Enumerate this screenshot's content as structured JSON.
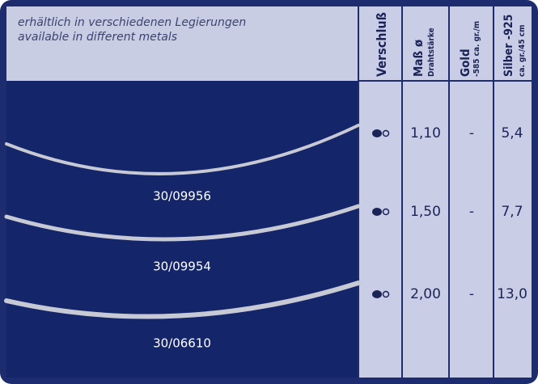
{
  "header": {
    "title_de": "erhältlich in verschiedenen Legierungen",
    "title_en": "available in different metals"
  },
  "columns": [
    {
      "label": "Verschluß"
    },
    {
      "label": "Maß ø",
      "sub": "Drahtstärke"
    },
    {
      "label": "Gold",
      "sub": "-585 ca. gr./m"
    },
    {
      "label": "Silber -925",
      "sub": "ca. gr./45 cm"
    }
  ],
  "rows": [
    {
      "article": "30/09956",
      "size": "1,10",
      "gold": "-",
      "silver": "5,4"
    },
    {
      "article": "30/09954",
      "size": "1,50",
      "gold": "-",
      "silver": "7,7"
    },
    {
      "article": "30/06610",
      "size": "2,00",
      "gold": "-",
      "silver": "13,0"
    }
  ]
}
